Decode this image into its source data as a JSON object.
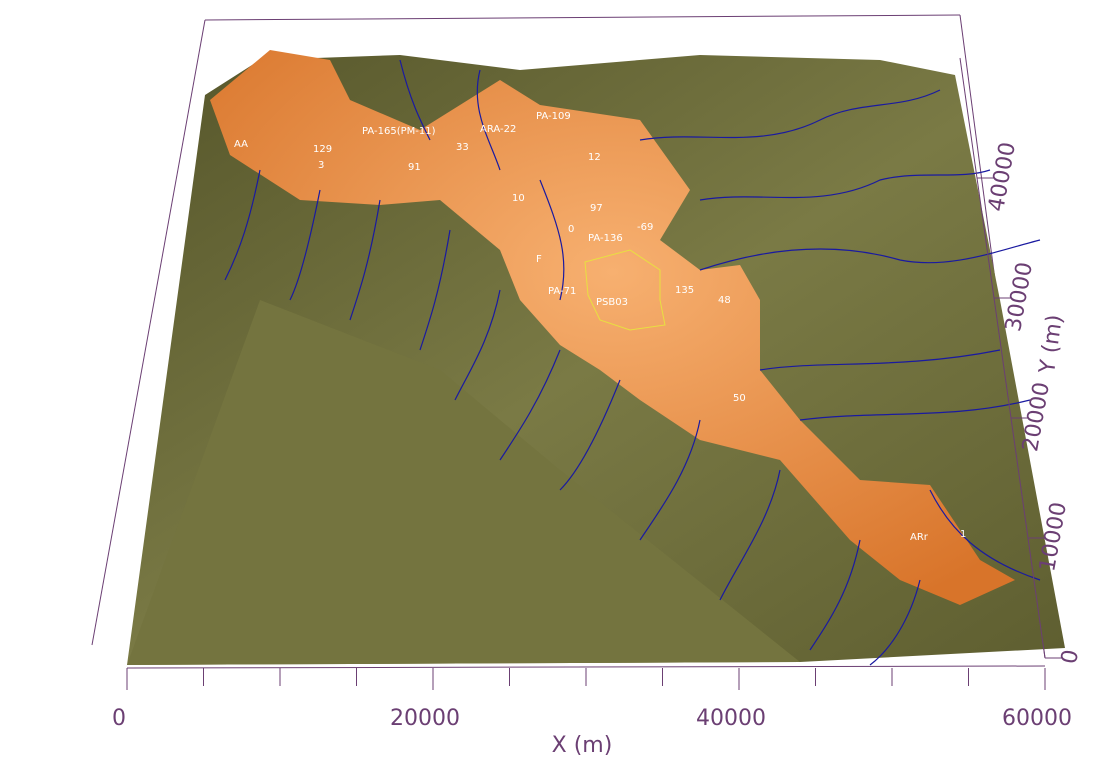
{
  "chart_data": {
    "type": "surface",
    "xlabel": "X (m)",
    "ylabel": "Y (m)",
    "xlim": [
      0,
      60000
    ],
    "xticks": [
      0,
      20000,
      40000,
      60000
    ],
    "xminorticks": [
      0,
      5000,
      10000,
      15000,
      20000,
      25000,
      30000,
      35000,
      40000,
      45000,
      50000,
      55000,
      60000
    ],
    "ylim": [
      0,
      50000
    ],
    "yticks": [
      0,
      10000,
      20000,
      30000,
      40000
    ],
    "surface_color": "#6f6f3a",
    "highlight_color": "#e8893a",
    "stream_color": "#1a1aa0",
    "axis_color": "#6b3f73",
    "annotations": [
      "AA",
      "PA-165(PM-11)",
      "33",
      "ARA-22",
      "PA-109",
      "129",
      "3",
      "91",
      "12",
      "10",
      "97",
      "0",
      "PA-136",
      "-69",
      "F",
      "PA-71",
      "PSB03",
      "135",
      "48",
      "50",
      "ARr",
      "1"
    ]
  }
}
